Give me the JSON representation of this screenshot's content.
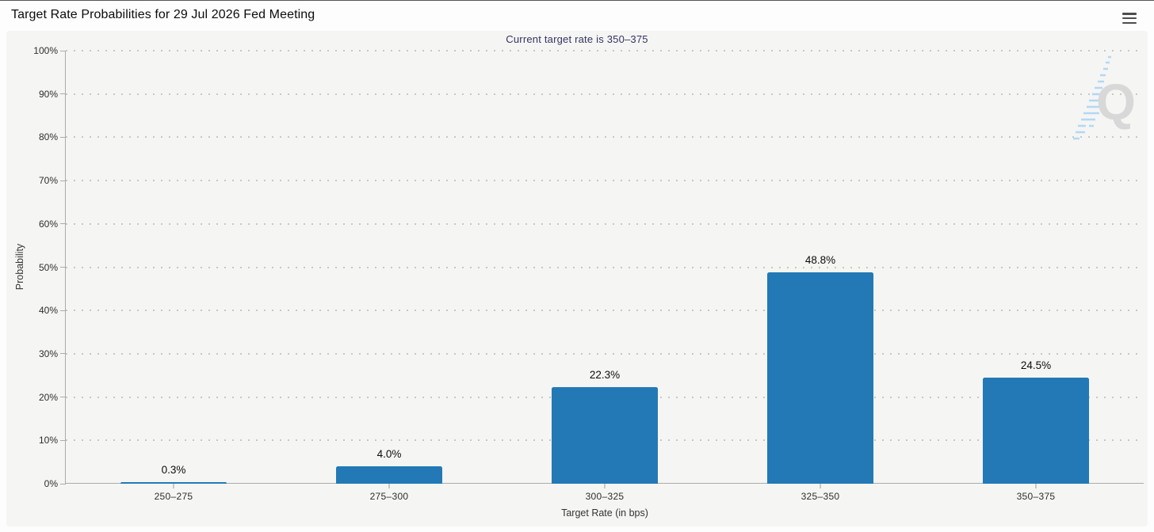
{
  "header": {
    "title": "Target Rate Probabilities for 29 Jul 2026 Fed Meeting"
  },
  "icons": {
    "menu": "hamburger-menu-icon"
  },
  "watermark": {
    "letter": "Q"
  },
  "colors": {
    "bar": "#2279b5",
    "subtitle_text": "#333366",
    "panel_background": "#f5f5f3",
    "watermark_gray": "#d8d8d8",
    "watermark_blue": "#aed6f4"
  },
  "chart_data": {
    "type": "bar",
    "title": "Target Rate Probabilities for 29 Jul 2026 Fed Meeting",
    "subtitle": "Current target rate is 350–375",
    "categories": [
      "250–275",
      "275–300",
      "300–325",
      "325–350",
      "350–375"
    ],
    "values": [
      0.3,
      4.0,
      22.3,
      48.8,
      24.5
    ],
    "value_labels": [
      "0.3%",
      "4.0%",
      "22.3%",
      "48.8%",
      "24.5%"
    ],
    "xlabel": "Target Rate (in bps)",
    "ylabel": "Probability",
    "ylim": [
      0,
      100
    ],
    "ytick_step": 10,
    "ytick_labels": [
      "0%",
      "10%",
      "20%",
      "30%",
      "40%",
      "50%",
      "60%",
      "70%",
      "80%",
      "90%",
      "100%"
    ],
    "grid": "horizontal-dotted",
    "legend": "none",
    "bar_color": "#2279b5"
  }
}
